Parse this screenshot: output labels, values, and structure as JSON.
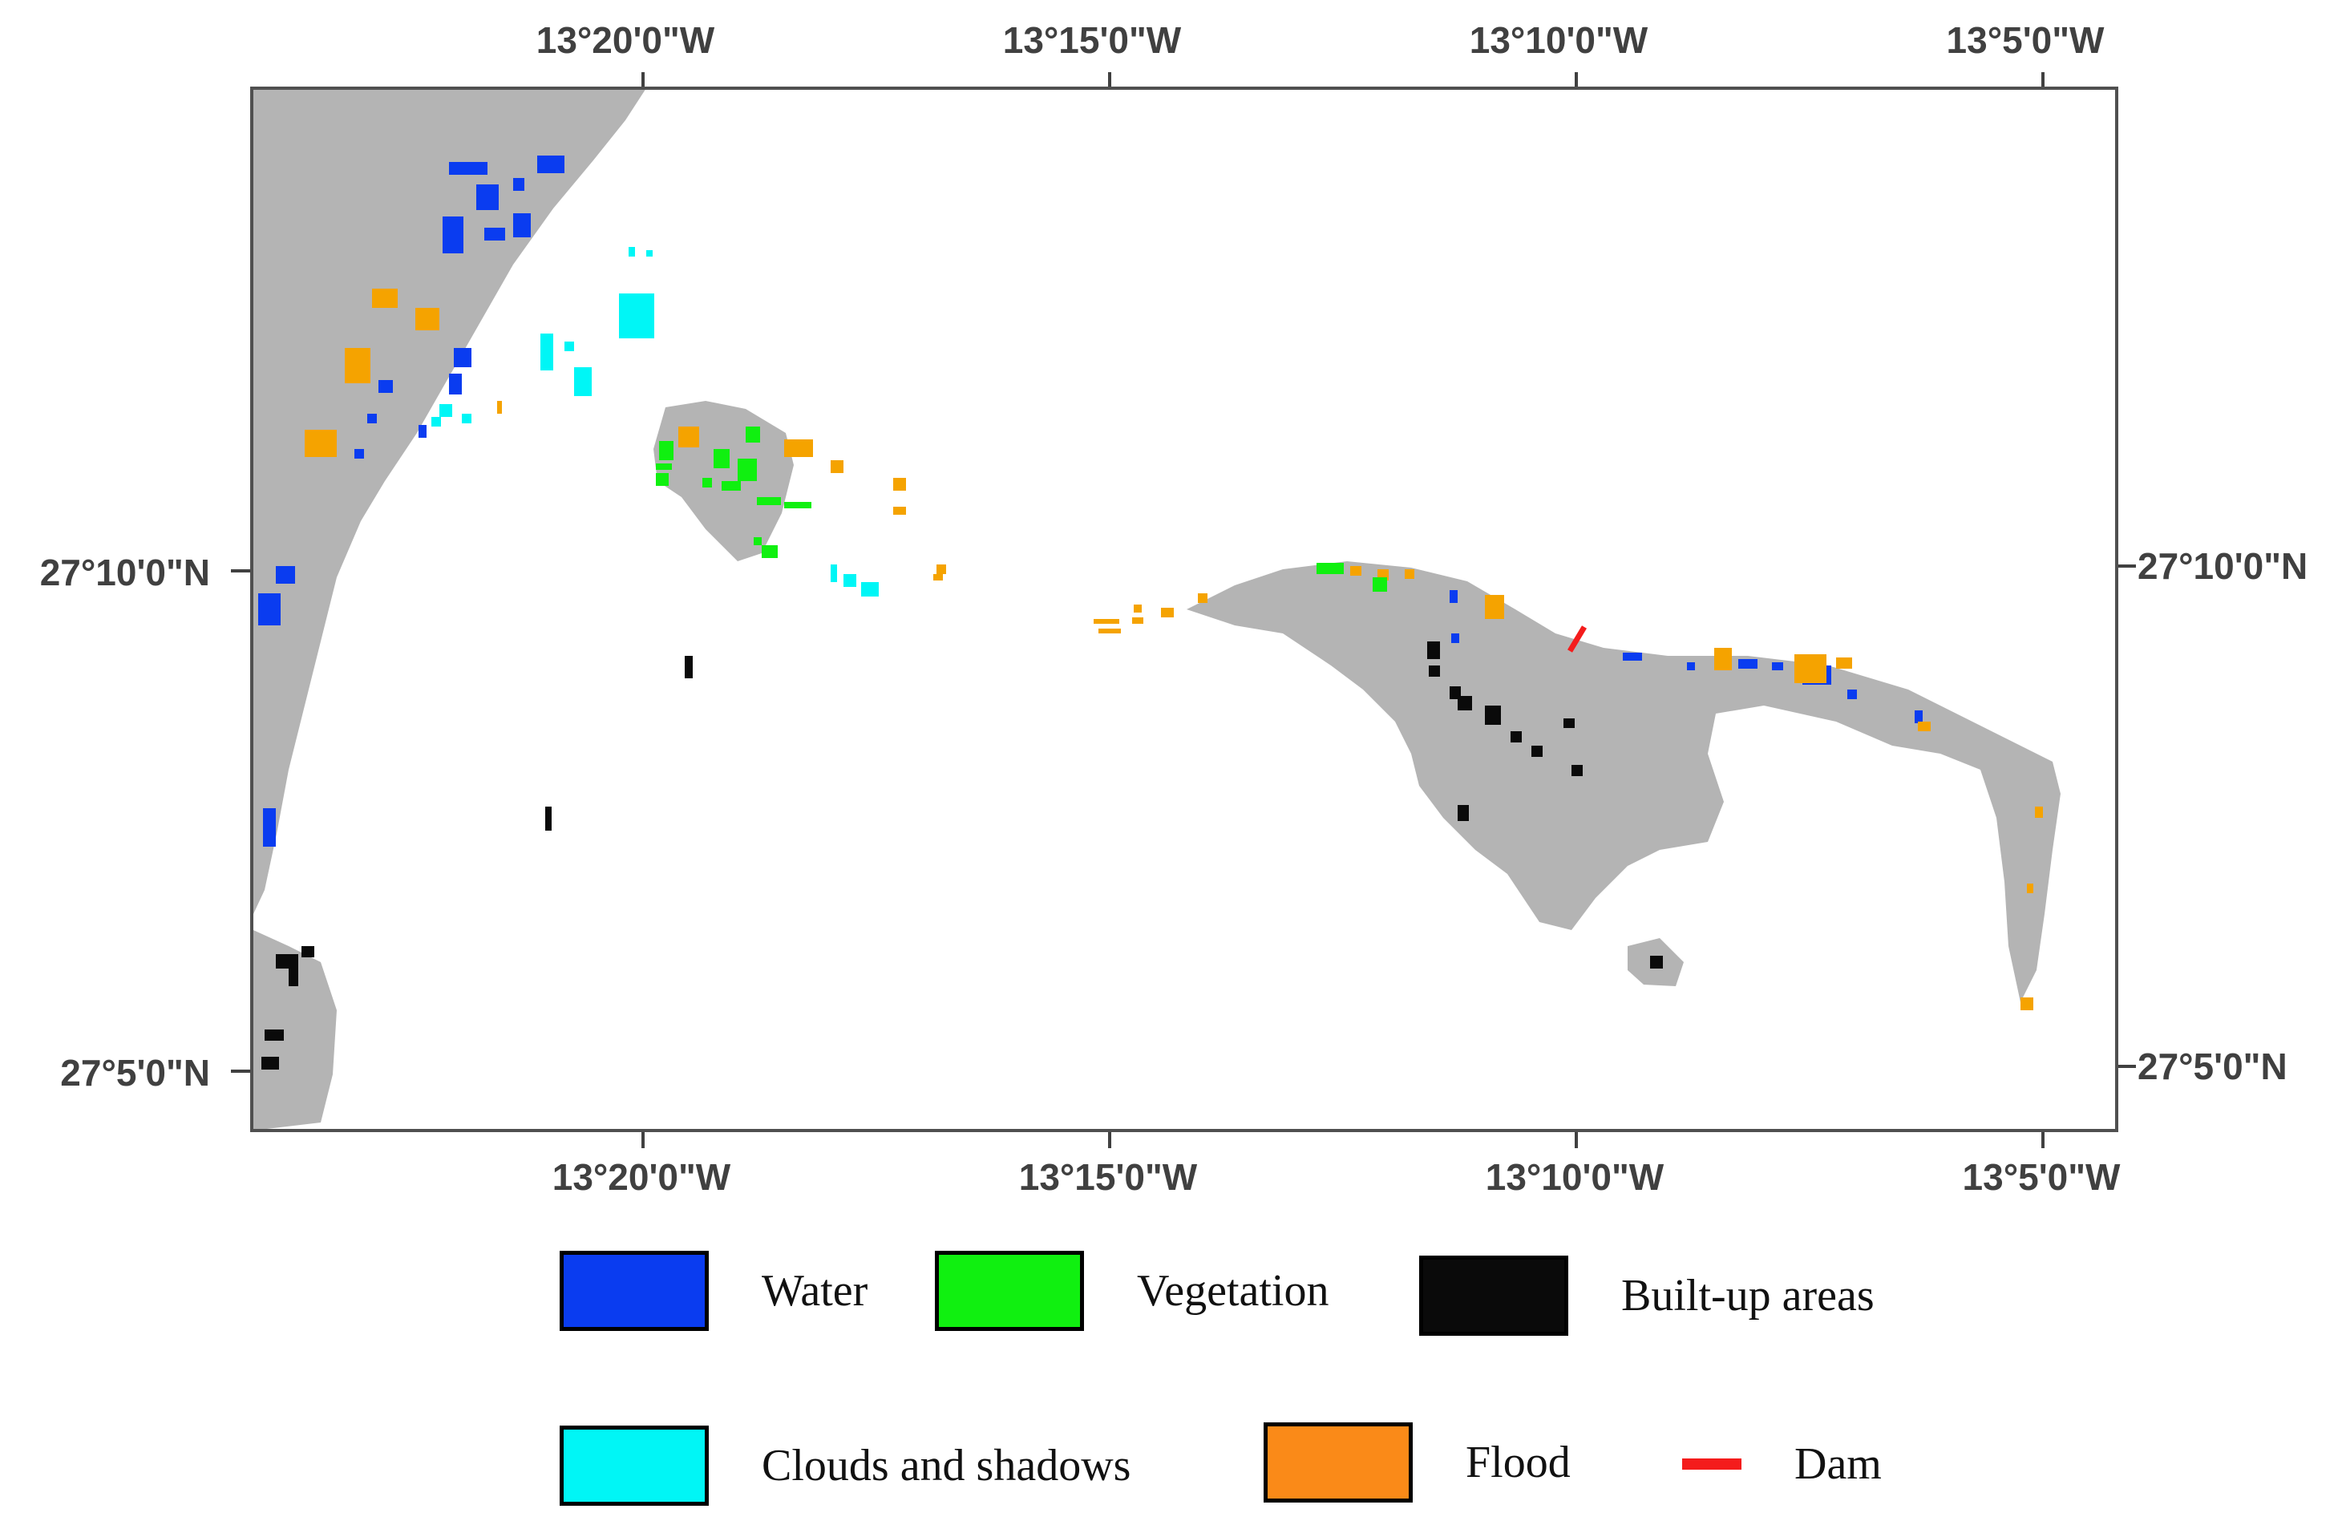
{
  "map": {
    "top_axis_labels": [
      "13°20'0\"W",
      "13°15'0\"W",
      "13°10'0\"W",
      "13°5'0\"W"
    ],
    "bottom_axis_labels": [
      "13°20'0\"W",
      "13°15'0\"W",
      "13°10'0\"W",
      "13°5'0\"W"
    ],
    "left_axis_labels": [
      "27°10'0\"N",
      "27°5'0\"N"
    ],
    "right_axis_labels": [
      "27°10'0\"N",
      "27°5'0\"N"
    ]
  },
  "legend": {
    "items": [
      {
        "label": "Water",
        "color": "#0a3cf0"
      },
      {
        "label": "Vegetation",
        "color": "#10f010"
      },
      {
        "label": "Built-up areas",
        "color": "#0a0a0a"
      },
      {
        "label": "Clouds and shadows",
        "color": "#00f6f6"
      },
      {
        "label": "Flood",
        "color": "#fa8a18"
      },
      {
        "label": "Dam",
        "color": "#f41c1c"
      }
    ]
  },
  "colors": {
    "land_gray": "#b4b4b4",
    "frame": "#505050",
    "flood_map": "#f5a300"
  }
}
